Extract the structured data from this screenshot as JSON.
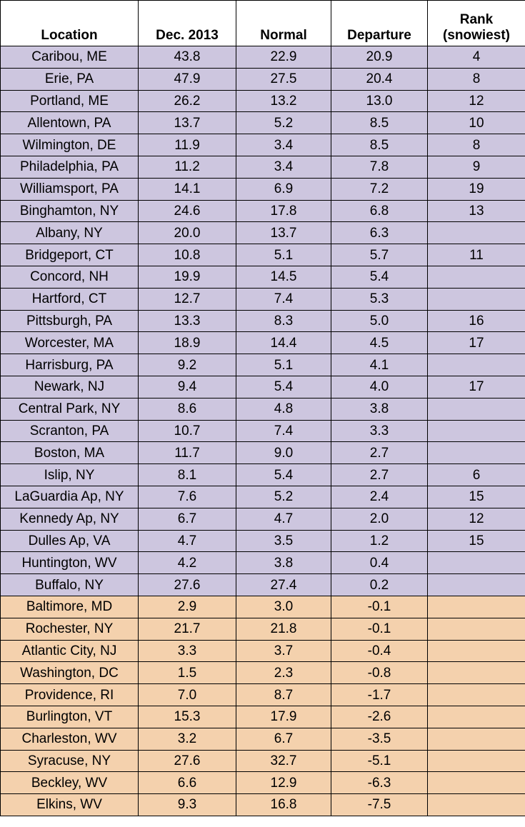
{
  "table": {
    "header": [
      "Location",
      "Dec. 2013",
      "Normal",
      "Departure",
      "Rank (snowiest)"
    ],
    "rows": [
      [
        "Caribou, ME",
        "43.8",
        "22.9",
        "20.9",
        "4"
      ],
      [
        "Erie, PA",
        "47.9",
        "27.5",
        "20.4",
        "8"
      ],
      [
        "Portland, ME",
        "26.2",
        "13.2",
        "13.0",
        "12"
      ],
      [
        "Allentown, PA",
        "13.7",
        "5.2",
        "8.5",
        "10"
      ],
      [
        "Wilmington, DE",
        "11.9",
        "3.4",
        "8.5",
        "8"
      ],
      [
        "Philadelphia, PA",
        "11.2",
        "3.4",
        "7.8",
        "9"
      ],
      [
        "Williamsport, PA",
        "14.1",
        "6.9",
        "7.2",
        "19"
      ],
      [
        "Binghamton, NY",
        "24.6",
        "17.8",
        "6.8",
        "13"
      ],
      [
        "Albany, NY",
        "20.0",
        "13.7",
        "6.3",
        null
      ],
      [
        "Bridgeport, CT",
        "10.8",
        "5.1",
        "5.7",
        "11"
      ],
      [
        "Concord, NH",
        "19.9",
        "14.5",
        "5.4",
        null
      ],
      [
        "Hartford, CT",
        "12.7",
        "7.4",
        "5.3",
        null
      ],
      [
        "Pittsburgh, PA",
        "13.3",
        "8.3",
        "5.0",
        "16"
      ],
      [
        "Worcester, MA",
        "18.9",
        "14.4",
        "4.5",
        "17"
      ],
      [
        "Harrisburg, PA",
        "9.2",
        "5.1",
        "4.1",
        null
      ],
      [
        "Newark, NJ",
        "9.4",
        "5.4",
        "4.0",
        "17"
      ],
      [
        "Central Park, NY",
        "8.6",
        "4.8",
        "3.8",
        null
      ],
      [
        "Scranton, PA",
        "10.7",
        "7.4",
        "3.3",
        null
      ],
      [
        "Boston, MA",
        "11.7",
        "9.0",
        "2.7",
        null
      ],
      [
        "Islip, NY",
        "8.1",
        "5.4",
        "2.7",
        "6"
      ],
      [
        "LaGuardia Ap, NY",
        "7.6",
        "5.2",
        "2.4",
        "15"
      ],
      [
        "Kennedy Ap, NY",
        "6.7",
        "4.7",
        "2.0",
        "12"
      ],
      [
        "Dulles Ap, VA",
        "4.7",
        "3.5",
        "1.2",
        "15"
      ],
      [
        "Huntington, WV",
        "4.2",
        "3.8",
        "0.4",
        null
      ],
      [
        "Buffalo, NY",
        "27.6",
        "27.4",
        "0.2",
        null
      ],
      [
        "Baltimore, MD",
        "2.9",
        "3.0",
        "-0.1",
        null
      ],
      [
        "Rochester, NY",
        "21.7",
        "21.8",
        "-0.1",
        null
      ],
      [
        "Atlantic City, NJ",
        "3.3",
        "3.7",
        "-0.4",
        null
      ],
      [
        "Washington, DC",
        "1.5",
        "2.3",
        "-0.8",
        null
      ],
      [
        "Providence, RI",
        "7.0",
        "8.7",
        "-1.7",
        null
      ],
      [
        "Burlington, VT",
        "15.3",
        "17.9",
        "-2.6",
        null
      ],
      [
        "Charleston, WV",
        "3.2",
        "6.7",
        "-3.5",
        null
      ],
      [
        "Syracuse, NY",
        "27.6",
        "32.7",
        "-5.1",
        null
      ],
      [
        "Beckley, WV",
        "6.6",
        "12.9",
        "-6.3",
        null
      ],
      [
        "Elkins, WV",
        "9.3",
        "16.8",
        "-7.5",
        null
      ]
    ]
  }
}
